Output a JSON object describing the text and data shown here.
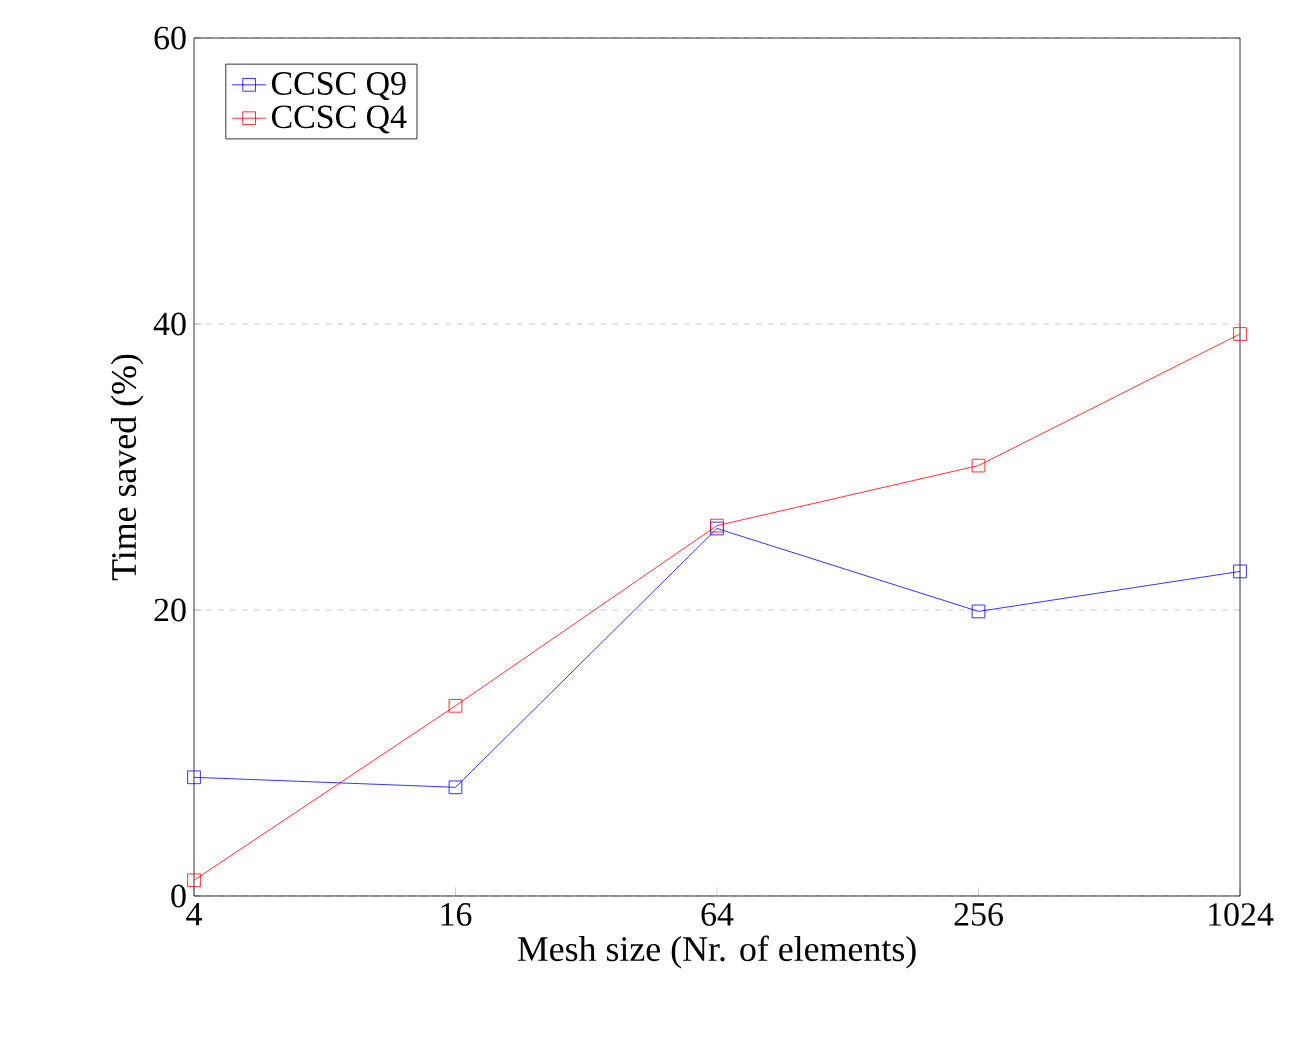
{
  "chart_data": {
    "type": "line",
    "xlabel": "Mesh size (Nr. of elements)",
    "ylabel": "Time saved (%)",
    "x": [
      4,
      16,
      64,
      256,
      1024
    ],
    "series": [
      {
        "name": "CCSC Q9",
        "color": "#0000ff",
        "values": [
          8.3,
          7.6,
          25.7,
          19.9,
          22.7
        ]
      },
      {
        "name": "CCSC Q4",
        "color": "#ff0000",
        "values": [
          1.1,
          13.3,
          25.9,
          30.1,
          39.3
        ]
      }
    ],
    "log": "x",
    "xlim": [
      4,
      1024
    ],
    "xticks": [
      4,
      16,
      64,
      256,
      1024
    ],
    "ylim": [
      0,
      60
    ],
    "yticks": [
      0,
      20,
      40,
      60
    ],
    "grid": "y",
    "legend": "top left",
    "marker": "square",
    "line_style": "solid"
  }
}
